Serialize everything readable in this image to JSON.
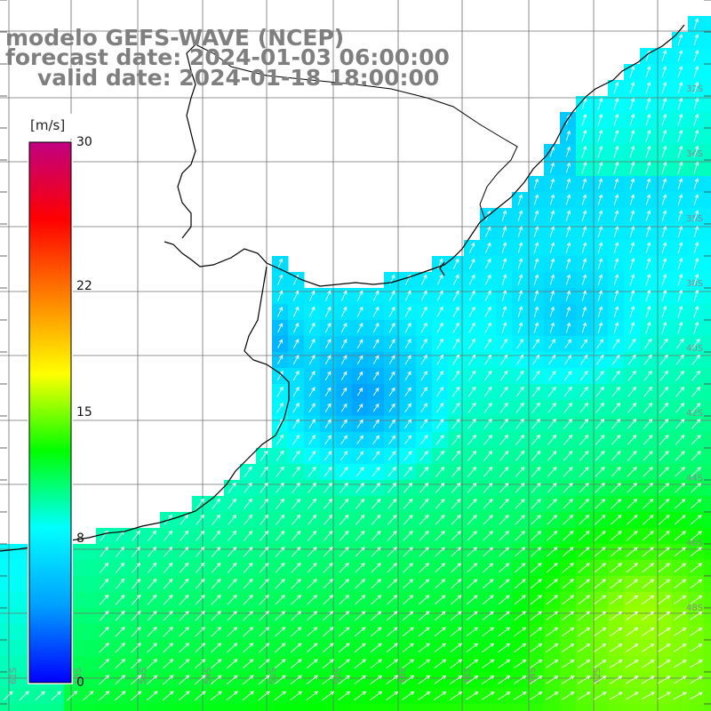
{
  "title": {
    "line1": "modelo GEFS-WAVE (NCEP)",
    "line2": "forecast date: 2024-01-03 06:00:00",
    "line3": "valid date: 2024-01-18 18:00:00"
  },
  "colorbar": {
    "units": "[m/s]",
    "min": 0,
    "max": 30,
    "ticks": [
      {
        "value": 30,
        "label": "30"
      },
      {
        "value": 22,
        "label": "22"
      },
      {
        "value": 15,
        "label": "15"
      },
      {
        "value": 8,
        "label": "8"
      },
      {
        "value": 0,
        "label": "0"
      }
    ],
    "colors": [
      "#0000ff",
      "#00a0ff",
      "#00ffff",
      "#00ff00",
      "#ffff00",
      "#ff8000",
      "#ff0000",
      "#c00080"
    ]
  },
  "map": {
    "lon_labels": [
      "61S",
      "58S",
      "56S",
      "54S",
      "52S",
      "50S",
      "48S",
      "46S",
      "44S",
      "42S"
    ],
    "lat_labels": [
      "32S",
      "34S",
      "35S",
      "38S",
      "40S",
      "42S",
      "44S",
      "46S",
      "48S"
    ],
    "dominant_direction": "north-east",
    "vector_color": "#ffffff",
    "grid_color": "#707070",
    "coast_color": "#000000"
  },
  "chart_data": {
    "type": "heatmap",
    "variable": "wind speed",
    "units": "m/s",
    "value_range": [
      0,
      30
    ],
    "description_regions": [
      {
        "region": "southern band",
        "speed_mps": 11
      },
      {
        "region": "south-east corner",
        "speed_mps": 13
      },
      {
        "region": "central shelf",
        "speed_mps": 7
      },
      {
        "region": "low-speed pocket",
        "speed_mps": 4
      },
      {
        "region": "north-east coastal",
        "speed_mps": 11
      }
    ]
  }
}
